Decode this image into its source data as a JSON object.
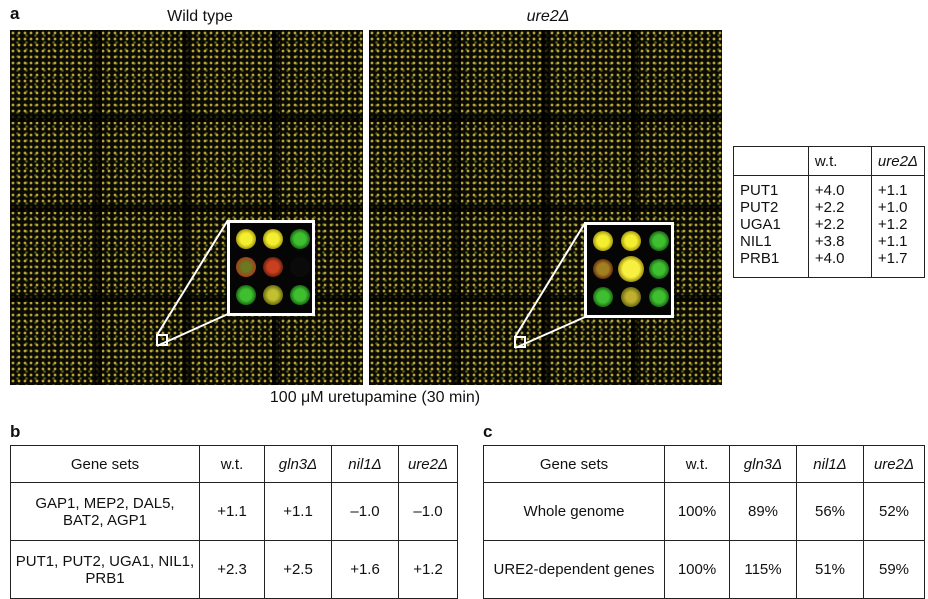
{
  "panel_a": {
    "letter": "a",
    "title_left": "Wild type",
    "title_right": "ure2Δ",
    "caption": "100 μM uretupamine (30 min)",
    "table": {
      "headers": [
        "",
        "w.t.",
        "ure2Δ"
      ],
      "rows": [
        [
          "PUT1",
          "+4.0",
          "+1.1"
        ],
        [
          "PUT2",
          "+2.2",
          "+1.0"
        ],
        [
          "UGA1",
          "+2.2",
          "+1.2"
        ],
        [
          "NIL1",
          "+3.8",
          "+1.1"
        ],
        [
          "PRB1",
          "+4.0",
          "+1.7"
        ]
      ]
    }
  },
  "panel_b": {
    "letter": "b",
    "headers": [
      "Gene sets",
      "w.t.",
      "gln3Δ",
      "nil1Δ",
      "ure2Δ"
    ],
    "rows": [
      [
        "GAP1, MEP2, DAL5, BAT2, AGP1",
        "+1.1",
        "+1.1",
        "–1.0",
        "–1.0"
      ],
      [
        "PUT1, PUT2, UGA1, NIL1, PRB1",
        "+2.3",
        "+2.5",
        "+1.6",
        "+1.2"
      ]
    ]
  },
  "panel_c": {
    "letter": "c",
    "headers": [
      "Gene sets",
      "w.t.",
      "gln3Δ",
      "nil1Δ",
      "ure2Δ"
    ],
    "rows": [
      [
        "Whole genome",
        "100%",
        "89%",
        "56%",
        "52%"
      ],
      [
        "URE2-dependent genes",
        "100%",
        "115%",
        "51%",
        "59%"
      ]
    ]
  },
  "colors": {
    "array_background": "#0c0a05",
    "spot_yellow": "#e8e020",
    "spot_green": "#2fae2a",
    "spot_red": "#b0401e"
  }
}
